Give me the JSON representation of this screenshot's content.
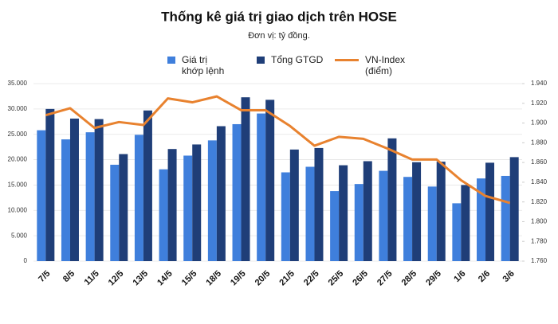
{
  "chart_data": {
    "type": "bar-line",
    "title": "Thống kê giá trị giao dịch trên HOSE",
    "subtitle": "Đơn vị: tỷ đồng.",
    "categories": [
      "7/5",
      "8/5",
      "11/5",
      "12/5",
      "13/5",
      "14/5",
      "15/5",
      "18/5",
      "19/5",
      "20/5",
      "21/5",
      "22/5",
      "25/5",
      "26/5",
      "27/5",
      "28/5",
      "29/5",
      "1/6",
      "2/6",
      "3/6"
    ],
    "series": [
      {
        "name": "Giá trị\nkhớp lệnh",
        "type": "bar",
        "color": "#3f7fdc",
        "values": [
          25800,
          24000,
          25400,
          19000,
          24900,
          18100,
          20800,
          23800,
          27000,
          29100,
          17500,
          18600,
          13800,
          15200,
          17800,
          16600,
          14700,
          11400,
          16300,
          16800
        ]
      },
      {
        "name": "Tổng GTGD",
        "type": "bar",
        "color": "#1f3e78",
        "values": [
          30000,
          28100,
          28000,
          21100,
          29700,
          22100,
          23000,
          26600,
          32300,
          31800,
          22000,
          22300,
          18900,
          19700,
          24200,
          19500,
          19600,
          15000,
          19400,
          20500
        ]
      },
      {
        "name": "VN-Index\n(điểm)",
        "type": "line",
        "axis": "y2",
        "color": "#e8822f",
        "values": [
          1908,
          1915,
          1895,
          1901,
          1898,
          1925,
          1921,
          1927,
          1913,
          1913,
          1897,
          1877,
          1886,
          1884,
          1874,
          1863,
          1863,
          1842,
          1826,
          1819
        ]
      }
    ],
    "ylim": [
      0,
      35000
    ],
    "yticks": [
      0,
      {
        "value": 5000,
        "label": "5.000"
      },
      {
        "value": 10000,
        "label": "10.000"
      },
      {
        "value": 15000,
        "label": "15.000"
      },
      {
        "value": 20000,
        "label": "20.000"
      },
      {
        "value": 25000,
        "label": "25.000"
      },
      {
        "value": 30000,
        "label": "30.000"
      },
      {
        "value": 35000,
        "label": "35.000"
      }
    ],
    "y2lim": [
      1760,
      1940
    ],
    "y2ticks": [
      {
        "value": 1760,
        "label": "1.760"
      },
      {
        "value": 1780,
        "label": "1.780"
      },
      {
        "value": 1800,
        "label": "1.800"
      },
      {
        "value": 1820,
        "label": "1.820"
      },
      {
        "value": 1840,
        "label": "1.840"
      },
      {
        "value": 1860,
        "label": "1.860"
      },
      {
        "value": 1880,
        "label": "1.880"
      },
      {
        "value": 1900,
        "label": "1.900"
      },
      {
        "value": 1920,
        "label": "1.920"
      },
      {
        "value": 1940,
        "label": "1.940"
      }
    ]
  }
}
